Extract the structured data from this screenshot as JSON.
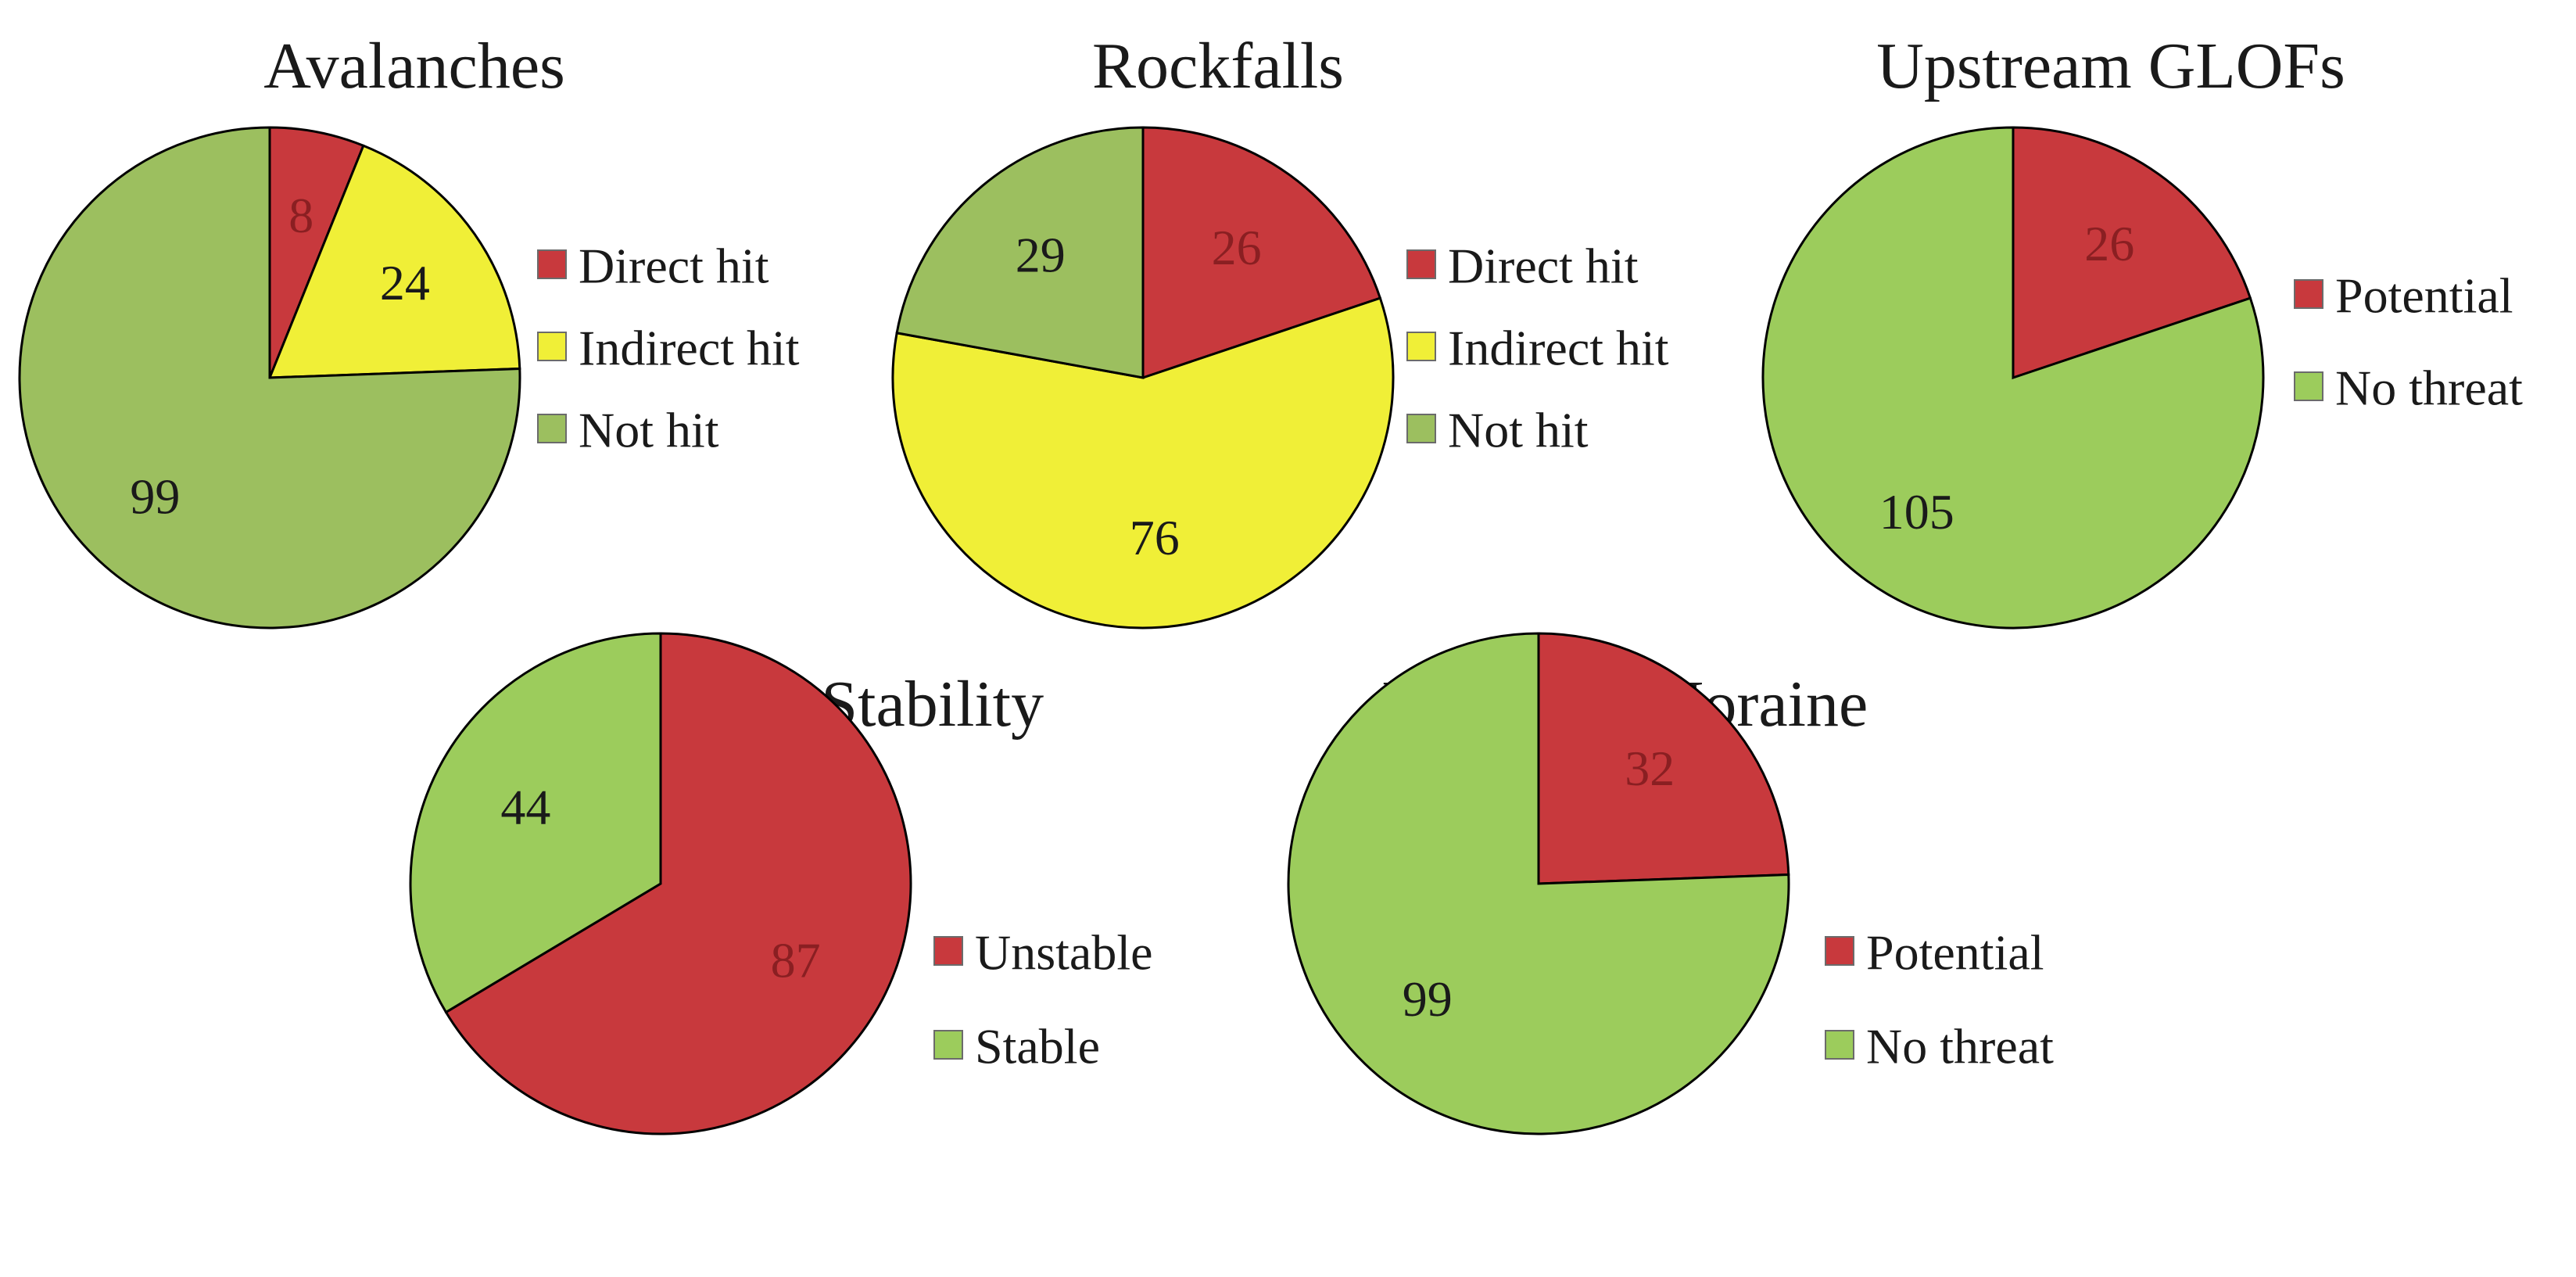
{
  "chart_data": [
    {
      "type": "pie",
      "title": "Avalanches",
      "slices": [
        {
          "label": "Direct hit",
          "value": 8,
          "color": "#c8393d",
          "text_color": "#8a1f22"
        },
        {
          "label": "Indirect hit",
          "value": 24,
          "color": "#f0ef37",
          "text_color": "#1a1a1a"
        },
        {
          "label": "Not hit",
          "value": 99,
          "color": "#9cbf5f",
          "text_color": "#1a1a1a"
        }
      ]
    },
    {
      "type": "pie",
      "title": "Rockfalls",
      "slices": [
        {
          "label": "Direct hit",
          "value": 26,
          "color": "#c8393d",
          "text_color": "#8a1f22"
        },
        {
          "label": "Indirect hit",
          "value": 76,
          "color": "#f0ef37",
          "text_color": "#1a1a1a"
        },
        {
          "label": "Not hit",
          "value": 29,
          "color": "#9cbf5f",
          "text_color": "#1a1a1a"
        }
      ]
    },
    {
      "type": "pie",
      "title": "Upstream GLOFs",
      "slices": [
        {
          "label": "Potential",
          "value": 26,
          "color": "#c8393d",
          "text_color": "#8a1f22"
        },
        {
          "label": "No threat",
          "value": 105,
          "color": "#9ccc5c",
          "text_color": "#1a1a1a"
        }
      ]
    },
    {
      "type": "pie",
      "title": "Moraine Stability",
      "slices": [
        {
          "label": "Unstable",
          "value": 87,
          "color": "#c8393d",
          "text_color": "#8a1f22"
        },
        {
          "label": "Stable",
          "value": 44,
          "color": "#9ccc5c",
          "text_color": "#1a1a1a"
        }
      ]
    },
    {
      "type": "pie",
      "title": "Ice-cored Moraine",
      "slices": [
        {
          "label": "Potential",
          "value": 32,
          "color": "#c8393d",
          "text_color": "#8a1f22"
        },
        {
          "label": "No threat",
          "value": 99,
          "color": "#9ccc5c",
          "text_color": "#1a1a1a"
        }
      ]
    }
  ]
}
